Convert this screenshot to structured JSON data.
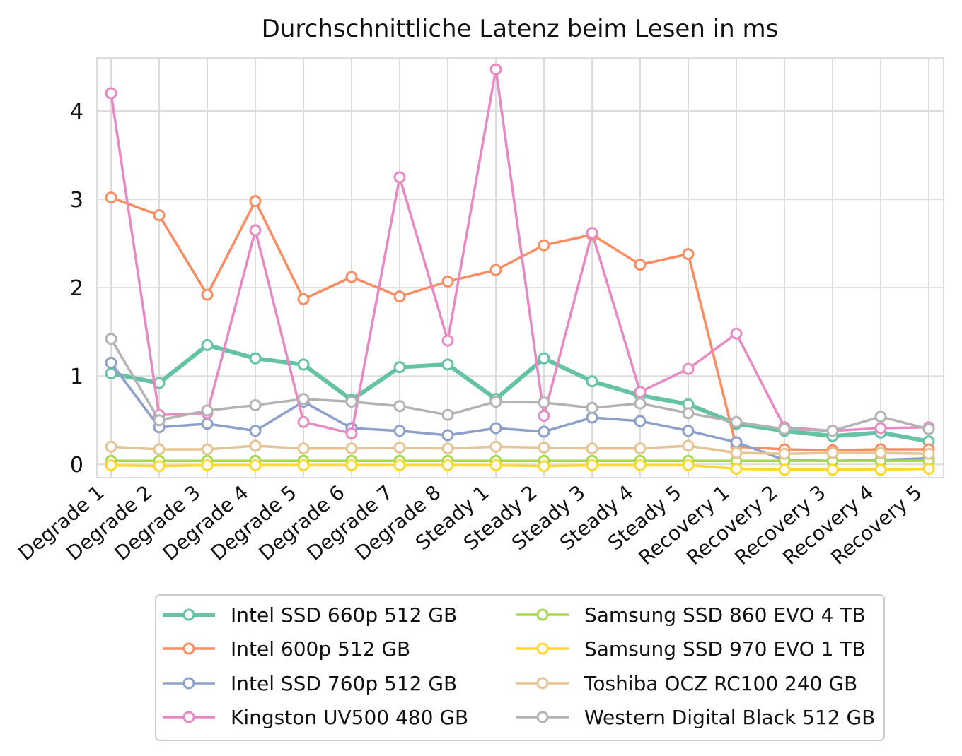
{
  "chart_data": {
    "type": "line",
    "title": "Durchschnittliche Latenz beim Lesen in ms",
    "xlabel": "",
    "ylabel": "",
    "ylim": [
      -0.15,
      4.6
    ],
    "yticks": [
      0,
      1,
      2,
      3,
      4
    ],
    "grid": true,
    "legend_position": "bottom",
    "categories": [
      "Degrade 1",
      "Degrade 2",
      "Degrade 3",
      "Degrade 4",
      "Degrade 5",
      "Degrade 6",
      "Degrade 7",
      "Degrade 8",
      "Steady 1",
      "Steady 2",
      "Steady 3",
      "Steady 4",
      "Steady 5",
      "Recovery 1",
      "Recovery 2",
      "Recovery 3",
      "Recovery 4",
      "Recovery 5"
    ],
    "series": [
      {
        "name": "Intel SSD 660p 512 GB",
        "color": "#66c2a5",
        "width": 6,
        "values": [
          1.03,
          0.92,
          1.35,
          1.2,
          1.13,
          0.73,
          1.1,
          1.13,
          0.74,
          1.2,
          0.94,
          0.78,
          0.68,
          0.46,
          0.38,
          0.32,
          0.36,
          0.26
        ]
      },
      {
        "name": "Intel 600p 512 GB",
        "color": "#fc8d62",
        "width": 3.5,
        "values": [
          3.02,
          2.82,
          1.92,
          2.98,
          1.87,
          2.12,
          1.9,
          2.07,
          2.2,
          2.48,
          2.6,
          2.26,
          2.38,
          0.2,
          0.17,
          0.16,
          0.17,
          0.17
        ]
      },
      {
        "name": "Intel SSD 760p 512 GB",
        "color": "#8da0cb",
        "width": 3.5,
        "values": [
          1.15,
          0.42,
          0.46,
          0.38,
          0.71,
          0.41,
          0.38,
          0.33,
          0.41,
          0.37,
          0.53,
          0.49,
          0.38,
          0.25,
          0.05,
          0.04,
          0.05,
          0.07
        ]
      },
      {
        "name": "Kingston UV500 480 GB",
        "color": "#e78ac3",
        "width": 3.5,
        "values": [
          4.2,
          0.56,
          0.58,
          2.65,
          0.48,
          0.35,
          3.25,
          1.4,
          4.47,
          0.55,
          2.62,
          0.82,
          1.08,
          1.48,
          0.42,
          0.38,
          0.41,
          0.42
        ]
      },
      {
        "name": "Samsung SSD 860 EVO 4 TB",
        "color": "#a6d854",
        "width": 3.5,
        "values": [
          0.04,
          0.04,
          0.04,
          0.04,
          0.04,
          0.04,
          0.04,
          0.04,
          0.04,
          0.04,
          0.04,
          0.04,
          0.04,
          0.04,
          0.04,
          0.04,
          0.04,
          0.04
        ]
      },
      {
        "name": "Samsung SSD 970 EVO 1 TB",
        "color": "#ffd92f",
        "width": 3.5,
        "values": [
          -0.01,
          -0.02,
          -0.01,
          -0.01,
          -0.01,
          -0.01,
          -0.01,
          -0.01,
          -0.01,
          -0.02,
          -0.01,
          -0.01,
          -0.01,
          -0.05,
          -0.06,
          -0.06,
          -0.06,
          -0.05
        ]
      },
      {
        "name": "Toshiba OCZ RC100 240 GB",
        "color": "#e5c494",
        "width": 3.5,
        "values": [
          0.2,
          0.17,
          0.17,
          0.21,
          0.18,
          0.18,
          0.19,
          0.18,
          0.2,
          0.19,
          0.18,
          0.18,
          0.21,
          0.13,
          0.12,
          0.13,
          0.13,
          0.12
        ]
      },
      {
        "name": "Western Digital Black 512 GB",
        "color": "#b3b3b3",
        "width": 3.5,
        "values": [
          1.42,
          0.5,
          0.61,
          0.67,
          0.74,
          0.71,
          0.66,
          0.56,
          0.71,
          0.7,
          0.64,
          0.69,
          0.58,
          0.48,
          0.4,
          0.38,
          0.54,
          0.4
        ]
      }
    ]
  }
}
